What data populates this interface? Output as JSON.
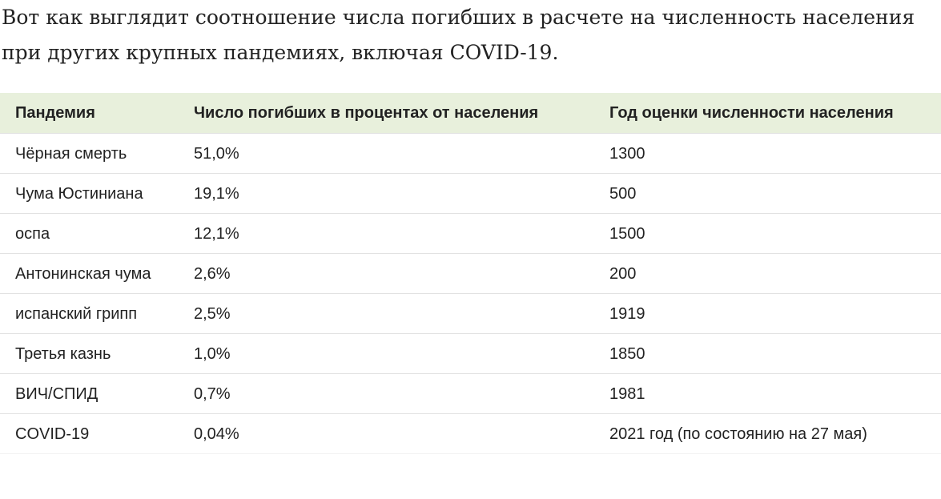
{
  "intro": "Вот как выглядит соотношение числа погибших в расчете на численность населения при других крупных пандемиях, включая COVID-19.",
  "table": {
    "header": [
      "Пандемия",
      "Число погибших в процентах от населения",
      "Год оценки численности населения"
    ],
    "rows": [
      [
        "Чёрная смерть",
        "51,0%",
        "1300"
      ],
      [
        "Чума Юстиниана",
        "19,1%",
        "500"
      ],
      [
        "оспа",
        "12,1%",
        "1500"
      ],
      [
        "Антонинская чума",
        "2,6%",
        "200"
      ],
      [
        "испанский грипп",
        "2,5%",
        "1919"
      ],
      [
        "Третья казнь",
        "1,0%",
        "1850"
      ],
      [
        "ВИЧ/СПИД",
        "0,7%",
        "1981"
      ],
      [
        "COVID-19",
        "0,04%",
        "2021 год (по состоянию на 27 мая)"
      ]
    ]
  }
}
